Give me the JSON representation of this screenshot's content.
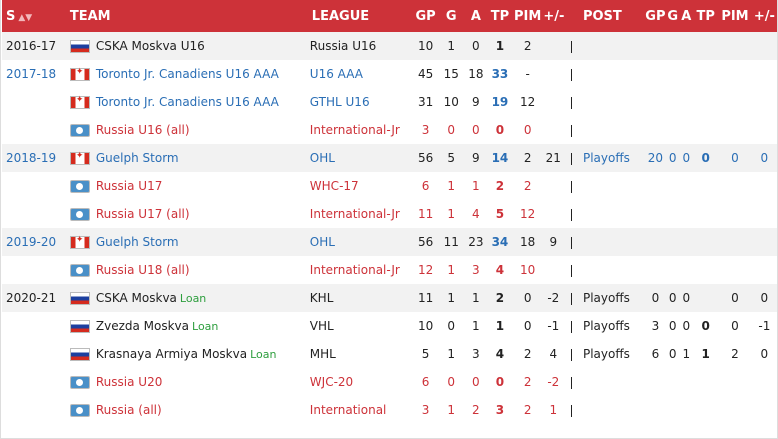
{
  "header": {
    "season": "S",
    "team": "TEAM",
    "league": "LEAGUE",
    "gp": "GP",
    "g": "G",
    "a": "A",
    "tp": "TP",
    "pim": "PIM",
    "pm": "+/-",
    "post": "POST",
    "pgp": "GP",
    "pg": "G",
    "pa": "A",
    "ptp": "TP",
    "ppim": "PIM",
    "ppm": "+/-"
  },
  "rows": [
    {
      "season": "2016-17",
      "flag": "ru",
      "team": "CSKA Moskva U16",
      "loan": "",
      "league": "Russia U16",
      "gp": "10",
      "g": "1",
      "a": "0",
      "tp": "1",
      "pim": "2",
      "pm": "",
      "post": "",
      "pgp": "",
      "pg": "",
      "pa": "",
      "ptp": "",
      "ppim": "",
      "ppm": "",
      "color": "#222222",
      "season_link": false
    },
    {
      "season": "2017-18",
      "flag": "ca",
      "team": "Toronto Jr. Canadiens U16 AAA",
      "loan": "",
      "league": "U16 AAA",
      "gp": "45",
      "g": "15",
      "a": "18",
      "tp": "33",
      "pim": "-",
      "pm": "",
      "post": "",
      "pgp": "",
      "pg": "",
      "pa": "",
      "ptp": "",
      "ppim": "",
      "ppm": "",
      "color": "#2a6eb5",
      "season_link": true
    },
    {
      "season": "",
      "flag": "ca",
      "team": "Toronto Jr. Canadiens U16 AAA",
      "loan": "",
      "league": "GTHL U16",
      "gp": "31",
      "g": "10",
      "a": "9",
      "tp": "19",
      "pim": "12",
      "pm": "",
      "post": "",
      "pgp": "",
      "pg": "",
      "pa": "",
      "ptp": "",
      "ppim": "",
      "ppm": "",
      "color": "#2a6eb5",
      "season_link": true
    },
    {
      "season": "",
      "flag": "int",
      "team": "Russia U16 (all)",
      "loan": "",
      "league": "International-Jr",
      "gp": "3",
      "g": "0",
      "a": "0",
      "tp": "0",
      "pim": "0",
      "pm": "",
      "post": "",
      "pgp": "",
      "pg": "",
      "pa": "",
      "ptp": "",
      "ppim": "",
      "ppm": "",
      "color": "#cd3239",
      "season_link": false
    },
    {
      "season": "2018-19",
      "flag": "ca",
      "team": "Guelph Storm",
      "loan": "",
      "league": "OHL",
      "gp": "56",
      "g": "5",
      "a": "9",
      "tp": "14",
      "pim": "2",
      "pm": "21",
      "post": "Playoffs",
      "pgp": "20",
      "pg": "0",
      "pa": "0",
      "ptp": "0",
      "ppim": "0",
      "ppm": "0",
      "color": "#2a6eb5",
      "season_link": true
    },
    {
      "season": "",
      "flag": "int",
      "team": "Russia U17",
      "loan": "",
      "league": "WHC-17",
      "gp": "6",
      "g": "1",
      "a": "1",
      "tp": "2",
      "pim": "2",
      "pm": "",
      "post": "",
      "pgp": "",
      "pg": "",
      "pa": "",
      "ptp": "",
      "ppim": "",
      "ppm": "",
      "color": "#cd3239",
      "season_link": false
    },
    {
      "season": "",
      "flag": "int",
      "team": "Russia U17 (all)",
      "loan": "",
      "league": "International-Jr",
      "gp": "11",
      "g": "1",
      "a": "4",
      "tp": "5",
      "pim": "12",
      "pm": "",
      "post": "",
      "pgp": "",
      "pg": "",
      "pa": "",
      "ptp": "",
      "ppim": "",
      "ppm": "",
      "color": "#cd3239",
      "season_link": false
    },
    {
      "season": "2019-20",
      "flag": "ca",
      "team": "Guelph Storm",
      "loan": "",
      "league": "OHL",
      "gp": "56",
      "g": "11",
      "a": "23",
      "tp": "34",
      "pim": "18",
      "pm": "9",
      "post": "",
      "pgp": "",
      "pg": "",
      "pa": "",
      "ptp": "",
      "ppim": "",
      "ppm": "",
      "color": "#2a6eb5",
      "season_link": true
    },
    {
      "season": "",
      "flag": "int",
      "team": "Russia U18 (all)",
      "loan": "",
      "league": "International-Jr",
      "gp": "12",
      "g": "1",
      "a": "3",
      "tp": "4",
      "pim": "10",
      "pm": "",
      "post": "",
      "pgp": "",
      "pg": "",
      "pa": "",
      "ptp": "",
      "ppim": "",
      "ppm": "",
      "color": "#cd3239",
      "season_link": false
    },
    {
      "season": "2020-21",
      "flag": "ru",
      "team": "CSKA Moskva",
      "loan": "Loan",
      "league": "KHL",
      "gp": "11",
      "g": "1",
      "a": "1",
      "tp": "2",
      "pim": "0",
      "pm": "-2",
      "post": "Playoffs",
      "pgp": "0",
      "pg": "0",
      "pa": "0",
      "ptp": "",
      "ppim": "0",
      "ppm": "0",
      "color": "#222222",
      "season_link": false
    },
    {
      "season": "",
      "flag": "ru",
      "team": "Zvezda Moskva",
      "loan": "Loan",
      "league": "VHL",
      "gp": "10",
      "g": "0",
      "a": "1",
      "tp": "1",
      "pim": "0",
      "pm": "-1",
      "post": "Playoffs",
      "pgp": "3",
      "pg": "0",
      "pa": "0",
      "ptp": "0",
      "ppim": "0",
      "ppm": "-1",
      "color": "#222222",
      "season_link": false
    },
    {
      "season": "",
      "flag": "ru",
      "team": "Krasnaya Armiya Moskva",
      "loan": "Loan",
      "league": "MHL",
      "gp": "5",
      "g": "1",
      "a": "3",
      "tp": "4",
      "pim": "2",
      "pm": "4",
      "post": "Playoffs",
      "pgp": "6",
      "pg": "0",
      "pa": "1",
      "ptp": "1",
      "ppim": "2",
      "ppm": "0",
      "color": "#222222",
      "season_link": false
    },
    {
      "season": "",
      "flag": "int",
      "team": "Russia U20",
      "loan": "",
      "league": "WJC-20",
      "gp": "6",
      "g": "0",
      "a": "0",
      "tp": "0",
      "pim": "2",
      "pm": "-2",
      "post": "",
      "pgp": "",
      "pg": "",
      "pa": "",
      "ptp": "",
      "ppim": "",
      "ppm": "",
      "color": "#cd3239",
      "season_link": false
    },
    {
      "season": "",
      "flag": "int",
      "team": "Russia (all)",
      "loan": "",
      "league": "International",
      "gp": "3",
      "g": "1",
      "a": "2",
      "tp": "3",
      "pim": "2",
      "pm": "1",
      "post": "",
      "pgp": "",
      "pg": "",
      "pa": "",
      "ptp": "",
      "ppim": "",
      "ppm": "",
      "color": "#cd3239",
      "season_link": false
    }
  ],
  "colors": {
    "header_bg": "#cd3239",
    "link": "#2a6eb5",
    "international": "#cd3239",
    "loan": "#2e9e3e"
  }
}
